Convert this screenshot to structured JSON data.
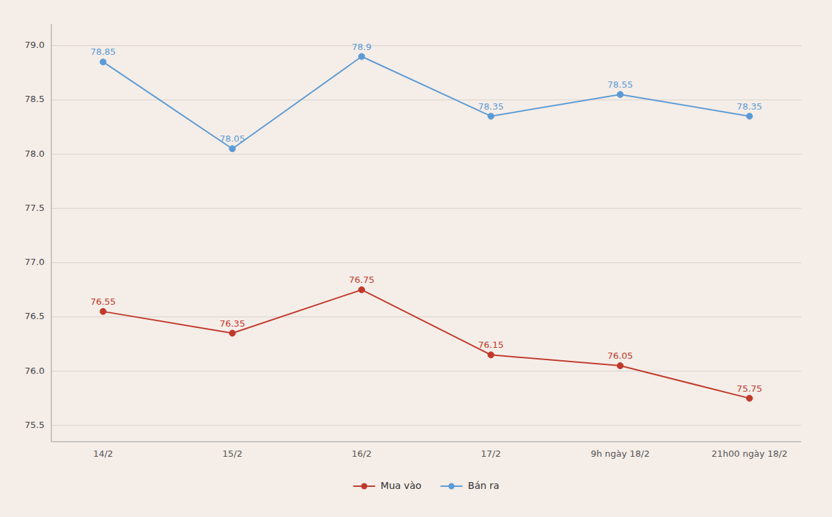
{
  "chart_data": {
    "type": "line",
    "categories": [
      "14/2",
      "15/2",
      "16/2",
      "17/2",
      "9h ngày 18/2",
      "21h00 ngày 18/2"
    ],
    "series": [
      {
        "name": "Mua vào",
        "color": "#c0392b",
        "values": [
          76.55,
          76.35,
          76.75,
          76.15,
          76.05,
          75.75
        ]
      },
      {
        "name": "Bán ra",
        "color": "#5b9bd5",
        "values": [
          78.85,
          78.05,
          78.9,
          78.35,
          78.55,
          78.35
        ]
      }
    ],
    "ylim": [
      75.35,
      79.2
    ],
    "yticks": [
      75.5,
      {
        "value": 76,
        "label": "76.0"
      },
      76.5,
      {
        "value": 77,
        "label": "77.0"
      },
      77.5,
      {
        "value": 78,
        "label": "78.0"
      },
      78.5,
      {
        "value": 79,
        "label": "79.0"
      }
    ],
    "grid": true,
    "legend": "bottom",
    "data_labels": true,
    "marker": "circle",
    "line_style": "solid"
  }
}
